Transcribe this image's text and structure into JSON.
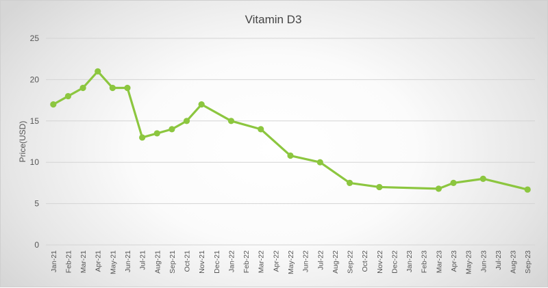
{
  "chart_data": {
    "type": "line",
    "title": "Vitamin D3",
    "xlabel": "",
    "ylabel": "Price(USD)",
    "ylim": [
      0,
      25
    ],
    "yticks": [
      0,
      5,
      10,
      15,
      20,
      25
    ],
    "grid": true,
    "legend": "none",
    "categories": [
      "Jan-21",
      "Feb-21",
      "Mar-21",
      "Apr-21",
      "May-21",
      "Jun-21",
      "Jul-21",
      "Aug-21",
      "Sep-21",
      "Oct-21",
      "Nov-21",
      "Dec-21",
      "Jan-22",
      "Feb-22",
      "Mar-22",
      "Apr-22",
      "May-22",
      "Jun-22",
      "Jul-22",
      "Aug-22",
      "Sep-22",
      "Oct-22",
      "Nov-22",
      "Dec-22",
      "Jan-23",
      "Feb-23",
      "Mar-23",
      "Apr-23",
      "May-23",
      "Jun-23",
      "Jul-23",
      "Aug-23",
      "Sep-23"
    ],
    "series": [
      {
        "color": "#8cc63f",
        "points": [
          {
            "x": "Jan-21",
            "y": 17
          },
          {
            "x": "Feb-21",
            "y": 18
          },
          {
            "x": "Mar-21",
            "y": 19
          },
          {
            "x": "Apr-21",
            "y": 21
          },
          {
            "x": "May-21",
            "y": 19
          },
          {
            "x": "Jun-21",
            "y": 19
          },
          {
            "x": "Jul-21",
            "y": 13
          },
          {
            "x": "Aug-21",
            "y": 13.5
          },
          {
            "x": "Sep-21",
            "y": 14
          },
          {
            "x": "Oct-21",
            "y": 15
          },
          {
            "x": "Nov-21",
            "y": 17
          },
          {
            "x": "Jan-22",
            "y": 15
          },
          {
            "x": "Mar-22",
            "y": 14
          },
          {
            "x": "May-22",
            "y": 10.8
          },
          {
            "x": "Jul-22",
            "y": 10
          },
          {
            "x": "Sep-22",
            "y": 7.5
          },
          {
            "x": "Nov-22",
            "y": 7
          },
          {
            "x": "Mar-23",
            "y": 6.8
          },
          {
            "x": "Apr-23",
            "y": 7.5
          },
          {
            "x": "Jun-23",
            "y": 8
          },
          {
            "x": "Sep-23",
            "y": 6.7
          }
        ]
      }
    ]
  }
}
